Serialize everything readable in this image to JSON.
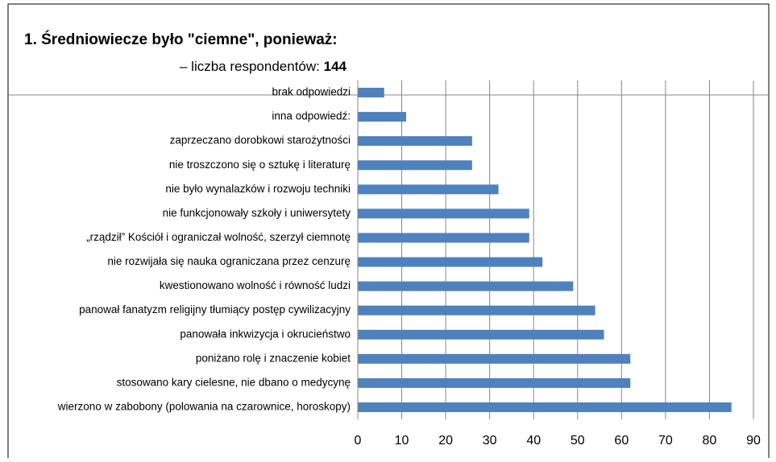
{
  "chart_data": {
    "type": "bar",
    "orientation": "horizontal",
    "title": "1. Średniowiecze było \"ciemne\", ponieważ:",
    "subtitle": "– liczba respondentów:",
    "subtitle_value": "144",
    "categories": [
      "brak odpowiedzi",
      "inna odpowiedź:",
      "zaprzeczano dorobkowi starożytności",
      "nie troszczono się o sztukę i literaturę",
      "nie było wynalazków i rozwoju techniki",
      "nie funkcjonowały szkoły i uniwersytety",
      "„rządził” Kościół i ograniczał wolność, szerzył ciemnotę",
      "nie rozwijała się nauka ograniczana przez cenzurę",
      "kwestionowano wolność i równość ludzi",
      "panował fanatyzm religijny tłumiący postęp cywilizacyjny",
      "panowała inkwizycja i okrucieństwo",
      "poniżano rolę i znaczenie kobiet",
      "stosowano kary cielesne, nie dbano o medycynę",
      "wierzono w zabobony (polowania na czarownice, horoskopy)"
    ],
    "values": [
      6,
      11,
      26,
      26,
      32,
      39,
      39,
      42,
      49,
      54,
      56,
      62,
      62,
      85
    ],
    "color": "#4f81bd",
    "xlim": [
      0,
      90
    ],
    "xticks": [
      0,
      10,
      20,
      30,
      40,
      50,
      60,
      70,
      80,
      90
    ],
    "grid": true
  }
}
